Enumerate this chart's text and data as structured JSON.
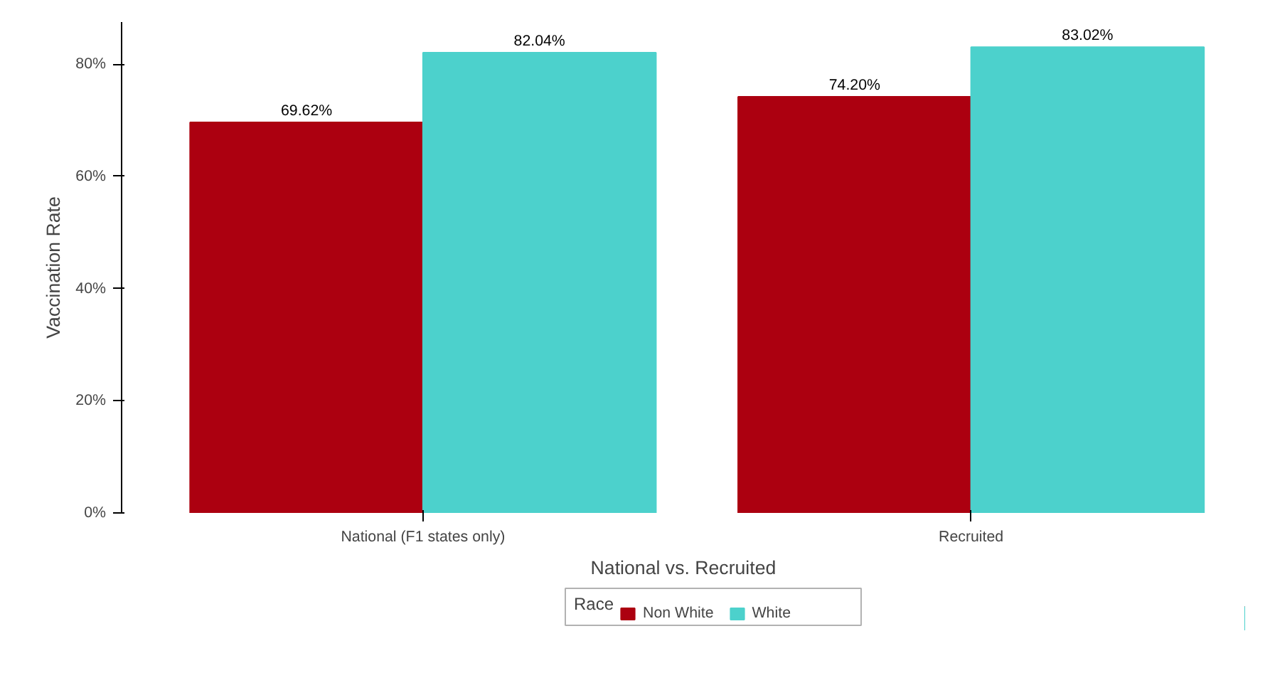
{
  "chart_data": {
    "type": "bar",
    "xlabel": "National vs. Recruited",
    "ylabel": "Vaccination Rate",
    "legend_title": "Race",
    "categories": [
      "National (F1 states only)",
      "Recruited"
    ],
    "series": [
      {
        "name": "Non White",
        "color": "#ac0010",
        "values": [
          69.62,
          74.2
        ],
        "value_labels": [
          "69.62%",
          "74.20%"
        ]
      },
      {
        "name": "White",
        "color": "#4cd1cc",
        "values": [
          82.04,
          83.02
        ],
        "value_labels": [
          "82.04%",
          "83.02%"
        ]
      }
    ],
    "ylim": [
      0,
      87.5
    ],
    "yticks": [
      {
        "value": 0,
        "label": "0%"
      },
      {
        "value": 20,
        "label": "20%"
      },
      {
        "value": 40,
        "label": "40%"
      },
      {
        "value": 60,
        "label": "60%"
      },
      {
        "value": 80,
        "label": "80%"
      }
    ],
    "grid": false,
    "legend": "bottom"
  }
}
